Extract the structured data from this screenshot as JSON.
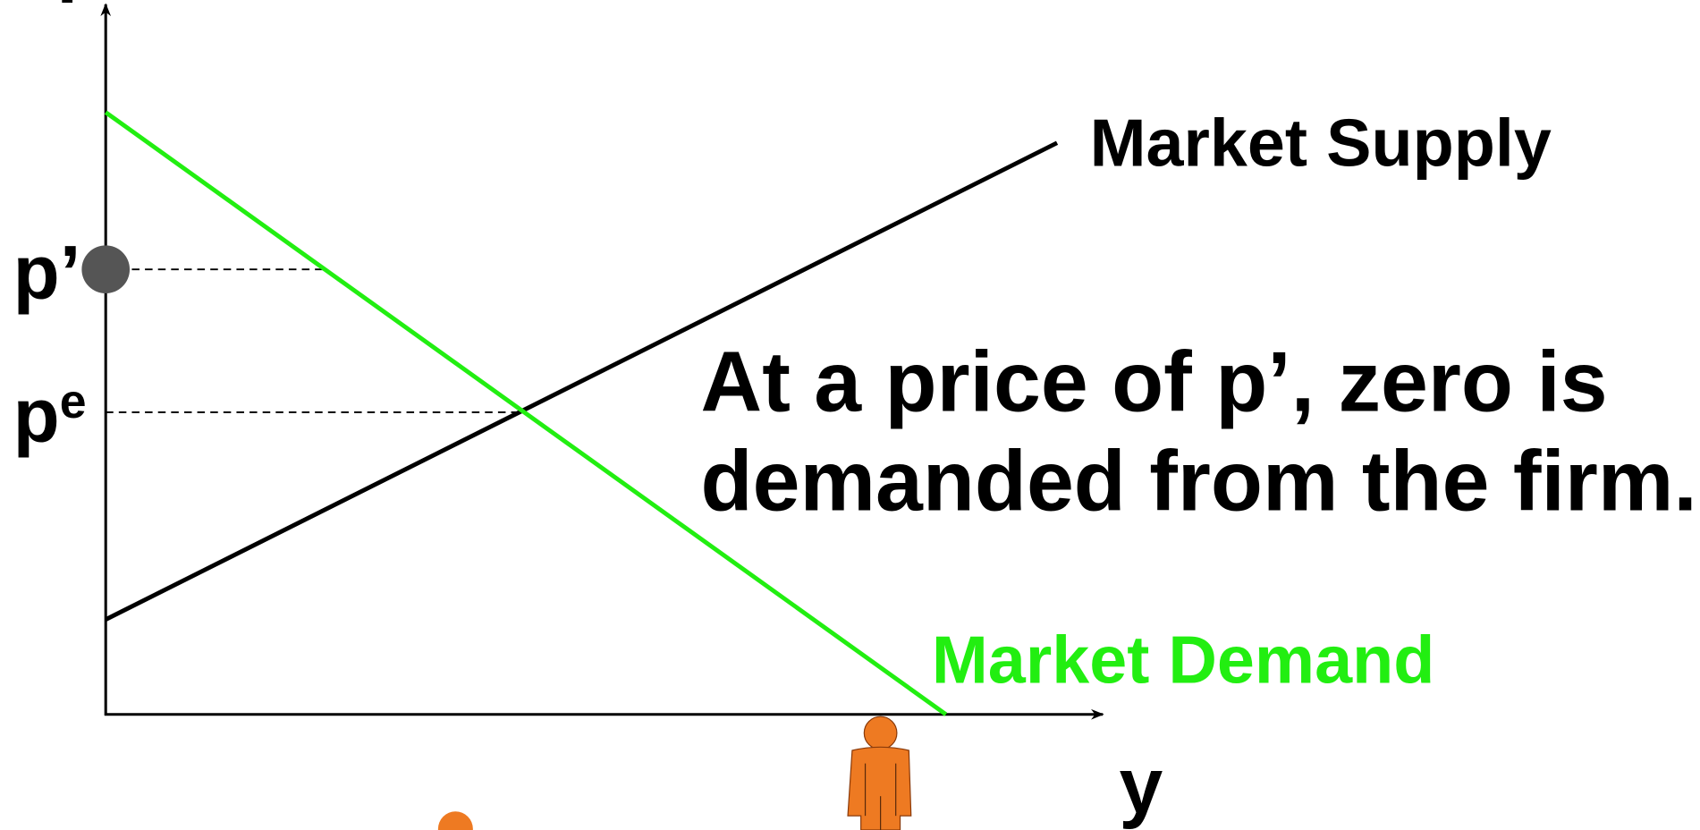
{
  "axes": {
    "y_label": "p",
    "x_label": "y"
  },
  "price_labels": {
    "p_prime": "p’",
    "p_equilibrium": {
      "base": "p",
      "sup": "e"
    }
  },
  "curves": {
    "supply": "Market Supply",
    "demand": "Market Demand"
  },
  "annotation": [
    "At a price of p’, zero is",
    "demanded from the firm."
  ]
}
